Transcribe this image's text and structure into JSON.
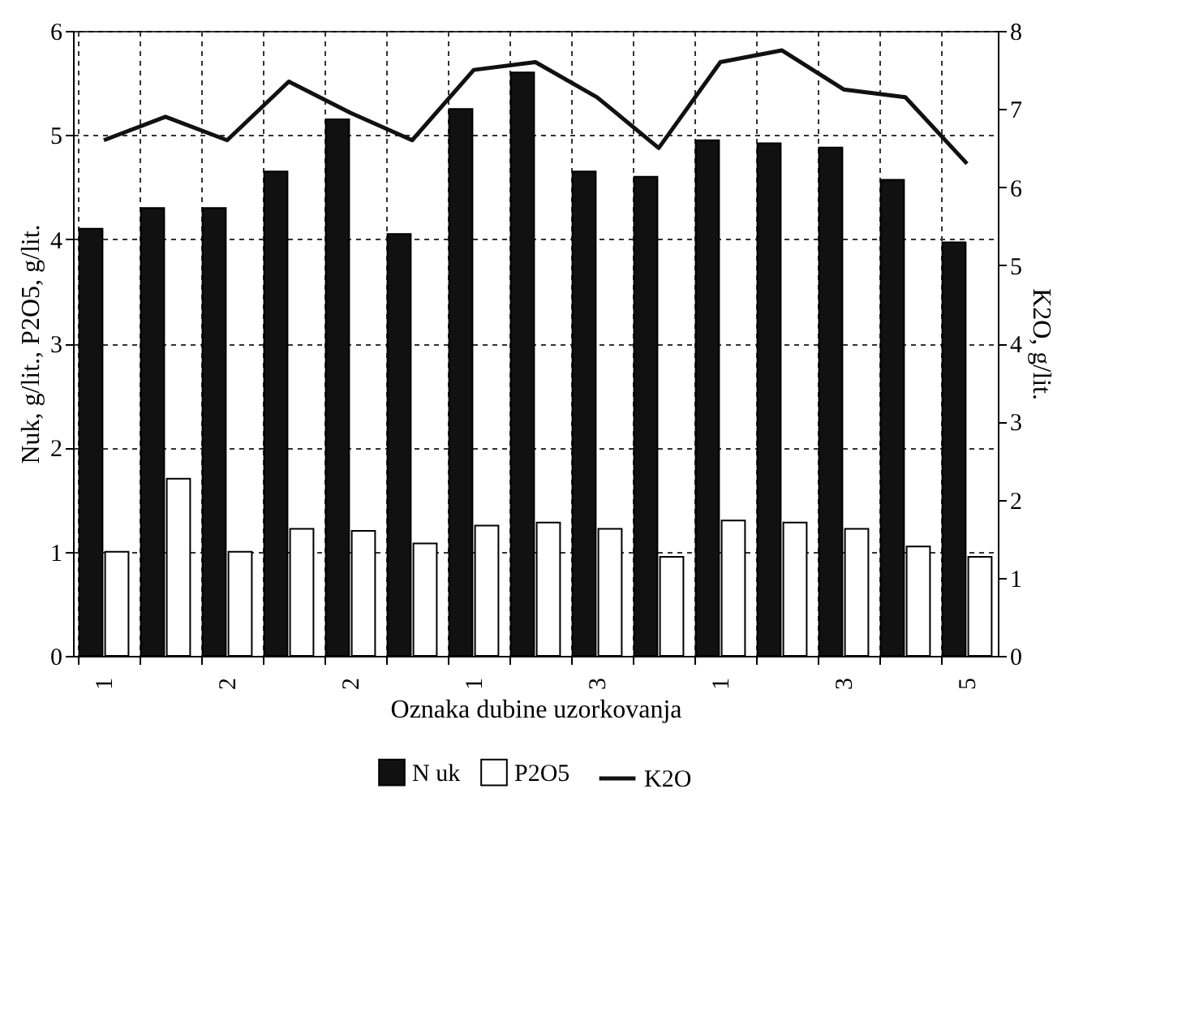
{
  "chart_data": {
    "type": "bar",
    "xlabel": "Oznaka dubine uzorkovanja",
    "ylabel": "Nuk, g/lit., P2O5, g/lit.",
    "y2label": "K2O, g/lit.",
    "categories": [
      "1",
      null,
      "2",
      null,
      "2",
      null,
      "1",
      null,
      "3",
      null,
      "1",
      null,
      "3",
      null,
      "5"
    ],
    "series": [
      {
        "name": "N uk",
        "color": "#111111",
        "values": [
          4.1,
          4.3,
          4.3,
          4.65,
          5.15,
          4.05,
          5.25,
          5.6,
          4.65,
          4.6,
          4.95,
          4.92,
          4.88,
          4.57,
          3.97
        ]
      },
      {
        "name": "P2O5",
        "color": "#ffffff",
        "values": [
          1.0,
          1.7,
          1.0,
          1.22,
          1.2,
          1.08,
          1.25,
          1.28,
          1.22,
          0.95,
          1.3,
          1.28,
          1.22,
          1.05,
          0.95
        ]
      },
      {
        "name": "K2O",
        "type": "line",
        "axis": "y2",
        "color": "#111111",
        "values": [
          6.6,
          6.9,
          6.6,
          7.35,
          6.95,
          6.6,
          7.5,
          7.6,
          7.15,
          6.5,
          7.6,
          7.75,
          7.25,
          7.15,
          6.3
        ]
      }
    ],
    "ylim": [
      0,
      6
    ],
    "yticks": [
      0,
      1,
      2,
      3,
      4,
      5,
      6
    ],
    "y2lim": [
      0,
      8
    ],
    "y2ticks": [
      0,
      1,
      2,
      3,
      4,
      5,
      6,
      7,
      8
    ],
    "grid": true,
    "legend": "bottom",
    "marker": "none",
    "line_style": "solid"
  }
}
